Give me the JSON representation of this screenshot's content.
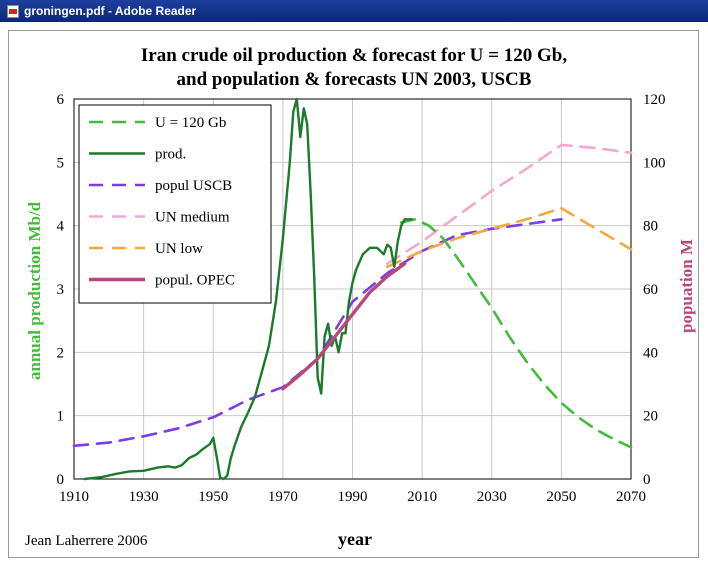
{
  "window": {
    "title": "groningen.pdf - Adobe Reader",
    "icon": "pdf-document-icon"
  },
  "chart_data": {
    "type": "line",
    "title": "Iran crude oil production & forecast for U = 120 Gb,",
    "subtitle": "and population & forecasts UN 2003, USCB",
    "xlabel": "year",
    "ylabel_left": "annual production Mb/d",
    "ylabel_right": "popuation M",
    "credit": "Jean Laherrere 2006",
    "xlim": [
      1910,
      2070
    ],
    "ylim_left": [
      0,
      6
    ],
    "ylim_right": [
      0,
      120
    ],
    "x_ticks": [
      "1910",
      "1930",
      "1950",
      "1970",
      "1990",
      "2010",
      "2030",
      "2050",
      "2070"
    ],
    "y_left_ticks": [
      "0",
      "1",
      "2",
      "3",
      "4",
      "5",
      "6"
    ],
    "y_right_ticks": [
      "0",
      "20",
      "40",
      "60",
      "80",
      "100",
      "120"
    ],
    "grid": true,
    "legend_position": "top-left",
    "series": [
      {
        "name": "U = 120 Gb",
        "axis": "left",
        "color": "#44bb3c",
        "dash": true,
        "width": 2.6,
        "points": [
          [
            2004,
            4.05
          ],
          [
            2008,
            4.1
          ],
          [
            2012,
            4.0
          ],
          [
            2016,
            3.8
          ],
          [
            2020,
            3.5
          ],
          [
            2025,
            3.1
          ],
          [
            2030,
            2.7
          ],
          [
            2035,
            2.25
          ],
          [
            2040,
            1.85
          ],
          [
            2045,
            1.5
          ],
          [
            2050,
            1.2
          ],
          [
            2055,
            0.97
          ],
          [
            2060,
            0.78
          ],
          [
            2065,
            0.63
          ],
          [
            2070,
            0.5
          ]
        ]
      },
      {
        "name": "prod.",
        "axis": "left",
        "color": "#1c7a2c",
        "dash": false,
        "width": 2.4,
        "points": [
          [
            1913,
            0.0
          ],
          [
            1918,
            0.03
          ],
          [
            1922,
            0.08
          ],
          [
            1926,
            0.12
          ],
          [
            1930,
            0.13
          ],
          [
            1934,
            0.18
          ],
          [
            1937,
            0.2
          ],
          [
            1939,
            0.18
          ],
          [
            1941,
            0.22
          ],
          [
            1943,
            0.33
          ],
          [
            1945,
            0.38
          ],
          [
            1947,
            0.47
          ],
          [
            1949,
            0.55
          ],
          [
            1950,
            0.65
          ],
          [
            1951,
            0.35
          ],
          [
            1952,
            0.02
          ],
          [
            1953,
            0.0
          ],
          [
            1954,
            0.05
          ],
          [
            1955,
            0.32
          ],
          [
            1956,
            0.5
          ],
          [
            1958,
            0.82
          ],
          [
            1960,
            1.05
          ],
          [
            1962,
            1.3
          ],
          [
            1964,
            1.7
          ],
          [
            1966,
            2.1
          ],
          [
            1968,
            2.8
          ],
          [
            1970,
            3.8
          ],
          [
            1972,
            5.0
          ],
          [
            1973,
            5.8
          ],
          [
            1974,
            6.0
          ],
          [
            1975,
            5.4
          ],
          [
            1976,
            5.85
          ],
          [
            1977,
            5.6
          ],
          [
            1978,
            4.5
          ],
          [
            1979,
            3.2
          ],
          [
            1980,
            1.6
          ],
          [
            1981,
            1.35
          ],
          [
            1982,
            2.25
          ],
          [
            1983,
            2.45
          ],
          [
            1984,
            2.1
          ],
          [
            1985,
            2.25
          ],
          [
            1986,
            2.0
          ],
          [
            1987,
            2.3
          ],
          [
            1988,
            2.3
          ],
          [
            1989,
            2.8
          ],
          [
            1990,
            3.1
          ],
          [
            1991,
            3.3
          ],
          [
            1993,
            3.55
          ],
          [
            1995,
            3.65
          ],
          [
            1997,
            3.65
          ],
          [
            1999,
            3.55
          ],
          [
            2000,
            3.7
          ],
          [
            2001,
            3.65
          ],
          [
            2002,
            3.35
          ],
          [
            2003,
            3.75
          ],
          [
            2004,
            4.0
          ],
          [
            2005,
            4.1
          ],
          [
            2007,
            4.1
          ]
        ]
      },
      {
        "name": "popul USCB",
        "axis": "right",
        "color": "#7a3de8",
        "dash": true,
        "width": 2.6,
        "points": [
          [
            1910,
            10.5
          ],
          [
            1920,
            11.5
          ],
          [
            1930,
            13.5
          ],
          [
            1940,
            16
          ],
          [
            1950,
            19.5
          ],
          [
            1960,
            25
          ],
          [
            1970,
            29
          ],
          [
            1980,
            38
          ],
          [
            1990,
            56
          ],
          [
            2000,
            65
          ],
          [
            2010,
            72
          ],
          [
            2020,
            77
          ],
          [
            2030,
            79
          ],
          [
            2040,
            80.5
          ],
          [
            2050,
            82
          ]
        ]
      },
      {
        "name": "UN  medium",
        "axis": "right",
        "color": "#f7a6d0",
        "dash": true,
        "width": 2.6,
        "points": [
          [
            2000,
            68
          ],
          [
            2010,
            75
          ],
          [
            2020,
            83
          ],
          [
            2030,
            91
          ],
          [
            2040,
            98
          ],
          [
            2050,
            105.5
          ],
          [
            2060,
            104.5
          ],
          [
            2070,
            103
          ]
        ]
      },
      {
        "name": "UN low",
        "axis": "right",
        "color": "#f5a83c",
        "dash": true,
        "width": 2.6,
        "points": [
          [
            2000,
            67
          ],
          [
            2010,
            72
          ],
          [
            2020,
            76
          ],
          [
            2030,
            79
          ],
          [
            2040,
            82
          ],
          [
            2050,
            85.5
          ],
          [
            2060,
            79
          ],
          [
            2070,
            72.5
          ]
        ]
      },
      {
        "name": "popul. OPEC",
        "axis": "right",
        "color": "#b8477a",
        "dash": false,
        "width": 3.4,
        "points": [
          [
            1970,
            28.5
          ],
          [
            1975,
            33
          ],
          [
            1980,
            38
          ],
          [
            1985,
            45
          ],
          [
            1990,
            52
          ],
          [
            1995,
            59
          ],
          [
            2000,
            64
          ],
          [
            2005,
            68
          ]
        ]
      }
    ]
  }
}
